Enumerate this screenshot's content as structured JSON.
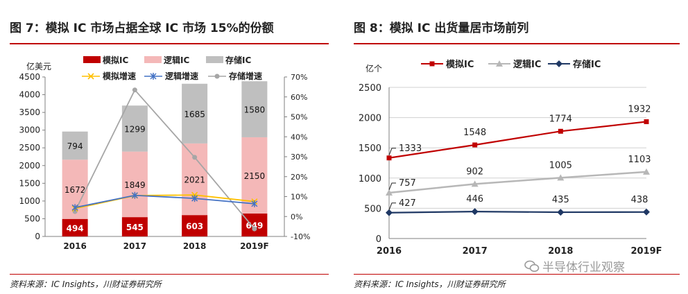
{
  "left": {
    "title": "图 7：模拟 IC 市场占据全球 IC 市场 15%的份额",
    "source": "资料来源：IC Insights，川财证券研究所"
  },
  "right": {
    "title": "图 8：模拟 IC 出货量居市场前列",
    "source": "资料来源：IC Insights，川财证券研究所"
  },
  "watermark": {
    "text": "半导体行业观察",
    "icon": "wechat-icon"
  },
  "colors": {
    "analog": "#c00000",
    "logic": "#f4b8b8",
    "memory": "#bfbfbf",
    "analog_growth": "#ffc000",
    "logic_growth": "#4472c4",
    "memory_growth": "#a6a6a6",
    "shipment_logic": "#b7b7b7",
    "shipment_memory": "#1f3864",
    "rule": "#c00000"
  },
  "chart_data": [
    {
      "type": "bar",
      "stacked": true,
      "categories": [
        "2016",
        "2017",
        "2018",
        "2019F"
      ],
      "ylabel": "亿美元",
      "ylim": [
        0,
        4500
      ],
      "yticks": [
        "0",
        "500",
        "1000",
        "1500",
        "2000",
        "2500",
        "3000",
        "3500",
        "4000",
        "4500"
      ],
      "y2lim": [
        -10,
        70
      ],
      "y2ticks": [
        "-10%",
        "0%",
        "10%",
        "20%",
        "30%",
        "40%",
        "50%",
        "60%",
        "70%"
      ],
      "series": [
        {
          "name": "模拟IC",
          "values": [
            494,
            545,
            603,
            649
          ],
          "labels": [
            "494",
            "545",
            "603",
            "649"
          ]
        },
        {
          "name": "逻辑IC",
          "values": [
            1672,
            1849,
            2021,
            2150
          ],
          "labels": [
            "1672",
            "1849",
            "2021",
            "2150"
          ]
        },
        {
          "name": "存储IC",
          "values": [
            794,
            1299,
            1685,
            1580
          ],
          "labels": [
            "794",
            "1299",
            "1685",
            "1580"
          ]
        }
      ],
      "lines": [
        {
          "name": "模拟增速",
          "values": [
            4,
            10.5,
            10.8,
            7.5
          ]
        },
        {
          "name": "逻辑增速",
          "values": [
            4.5,
            10.6,
            9.1,
            6.4
          ]
        },
        {
          "name": "存储增速",
          "values": [
            2.5,
            63.5,
            29.7,
            -6.2
          ]
        }
      ],
      "grid": false,
      "legend": "top"
    },
    {
      "type": "line",
      "categories": [
        "2016",
        "2017",
        "2018",
        "2019F"
      ],
      "ylabel": "亿个",
      "ylim": [
        0,
        2500
      ],
      "yticks": [
        "0",
        "500",
        "1000",
        "1500",
        "2000",
        "2500"
      ],
      "series": [
        {
          "name": "模拟IC",
          "values": [
            1333,
            1548,
            1774,
            1932
          ],
          "labels": [
            "1333",
            "1548",
            "1774",
            "1932"
          ]
        },
        {
          "name": "逻辑IC",
          "values": [
            757,
            902,
            1005,
            1103
          ],
          "labels": [
            "757",
            "902",
            "1005",
            "1103"
          ]
        },
        {
          "name": "存储IC",
          "values": [
            427,
            446,
            435,
            438
          ],
          "labels": [
            "427",
            "446",
            "435",
            "438"
          ]
        }
      ],
      "grid": true,
      "legend": "top"
    }
  ]
}
